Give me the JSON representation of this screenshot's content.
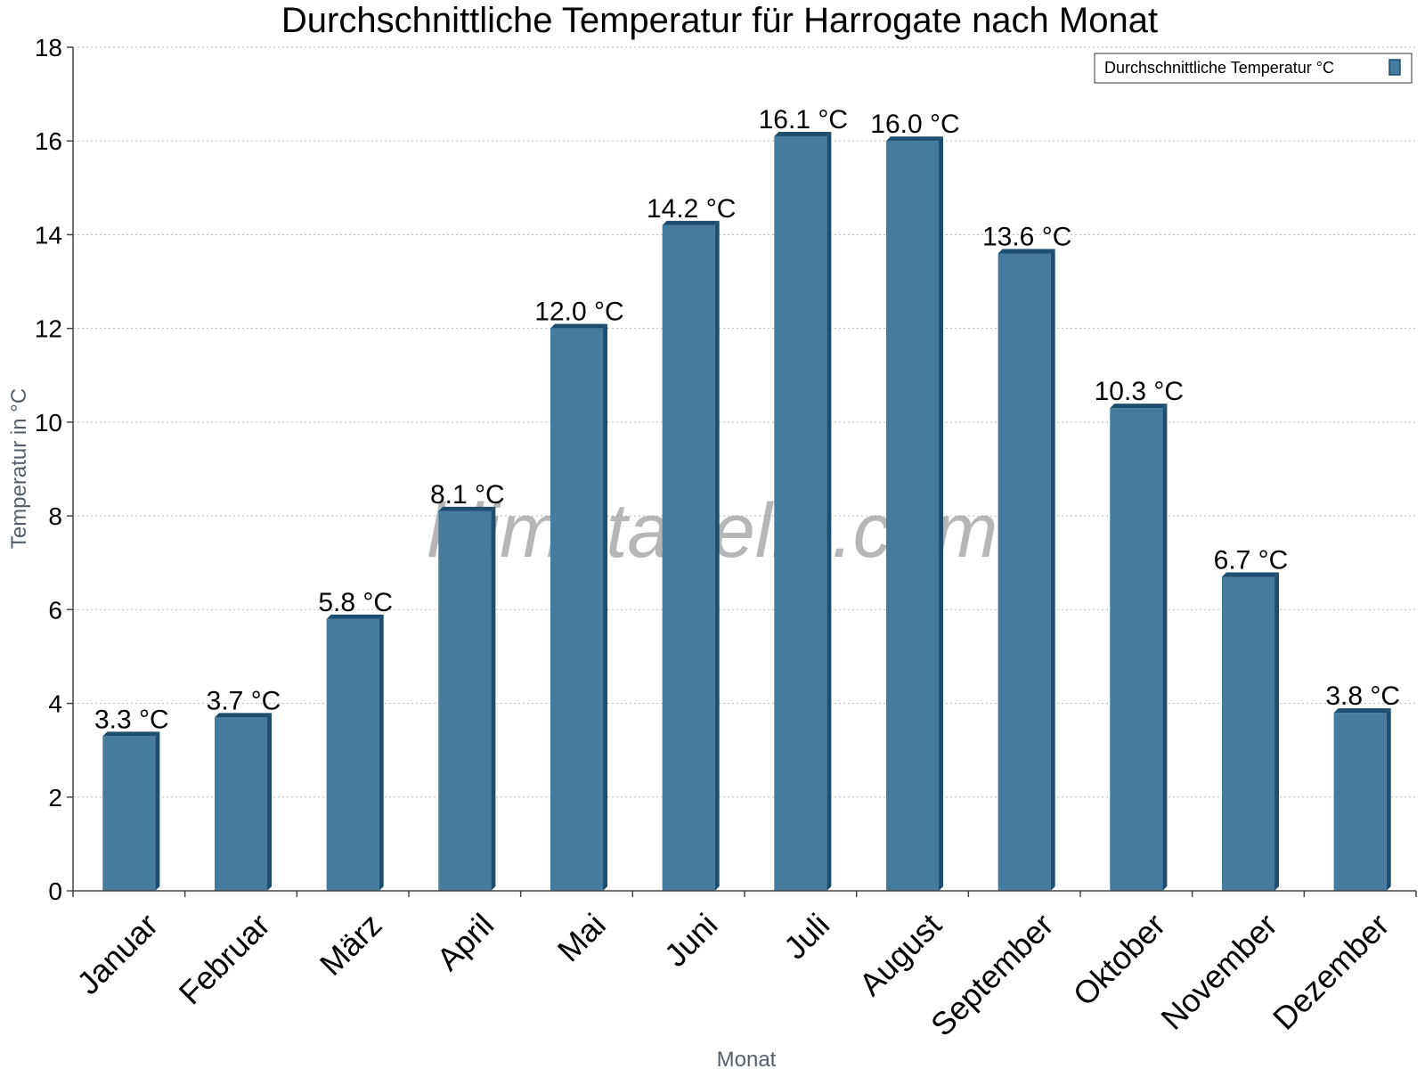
{
  "chart_data": {
    "type": "bar",
    "title": "Durchschnittliche Temperatur für Harrogate nach Monat",
    "xlabel": "Monat",
    "ylabel": "Temperatur in °C",
    "ylim": [
      0,
      18
    ],
    "yticks": [
      "0",
      "2",
      "4",
      "6",
      "8",
      "10",
      "12",
      "14",
      "16",
      "18"
    ],
    "grid": true,
    "legend_position": "top-right",
    "categories": [
      "Januar",
      "Februar",
      "März",
      "April",
      "Mai",
      "Juni",
      "Juli",
      "August",
      "September",
      "Oktober",
      "November",
      "Dezember"
    ],
    "series": [
      {
        "name": "Durchschnittliche Temperatur °C",
        "values": [
          3.3,
          3.7,
          5.8,
          8.1,
          12.0,
          14.2,
          16.1,
          16.0,
          13.6,
          10.3,
          6.7,
          3.8
        ],
        "labels": [
          "3.3 °C",
          "3.7 °C",
          "5.8 °C",
          "8.1 °C",
          "12.0 °C",
          "14.2 °C",
          "16.1 °C",
          "16.0 °C",
          "13.6 °C",
          "10.3 °C",
          "6.7 °C",
          "3.8 °C"
        ],
        "color": "#457b9d",
        "edge_color": "#1d4e70"
      }
    ],
    "watermark": "klimatabelle.com"
  }
}
